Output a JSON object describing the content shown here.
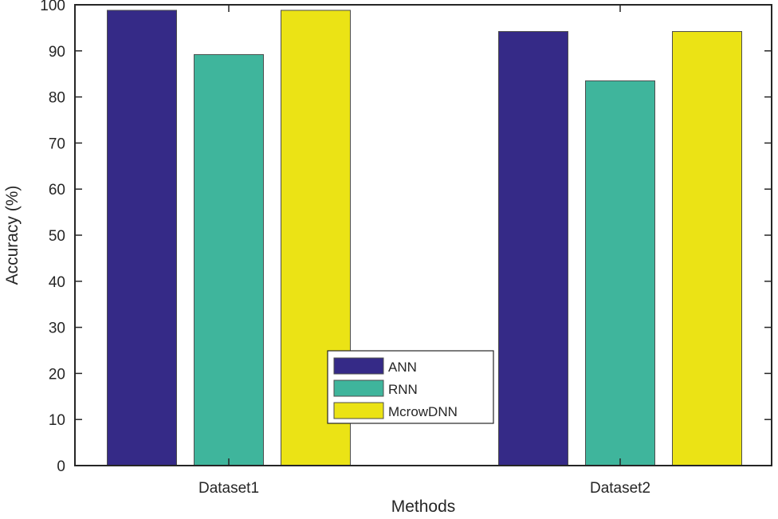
{
  "chart_data": {
    "type": "bar",
    "title": "",
    "xlabel": "Methods",
    "ylabel": "Accuracy (%)",
    "categories": [
      "Dataset1",
      "Dataset2"
    ],
    "ylim": [
      0,
      100
    ],
    "yticks": [
      0,
      10,
      20,
      30,
      40,
      50,
      60,
      70,
      80,
      90,
      100
    ],
    "grid": false,
    "legend_position": "bottom-center",
    "series": [
      {
        "name": "ANN",
        "color": "#352a87",
        "values": [
          98.8,
          94.2
        ]
      },
      {
        "name": "RNN",
        "color": "#3fb59c",
        "values": [
          89.2,
          83.5
        ]
      },
      {
        "name": "McrowDNN",
        "color": "#ebe315",
        "values": [
          98.8,
          94.2
        ]
      }
    ]
  }
}
